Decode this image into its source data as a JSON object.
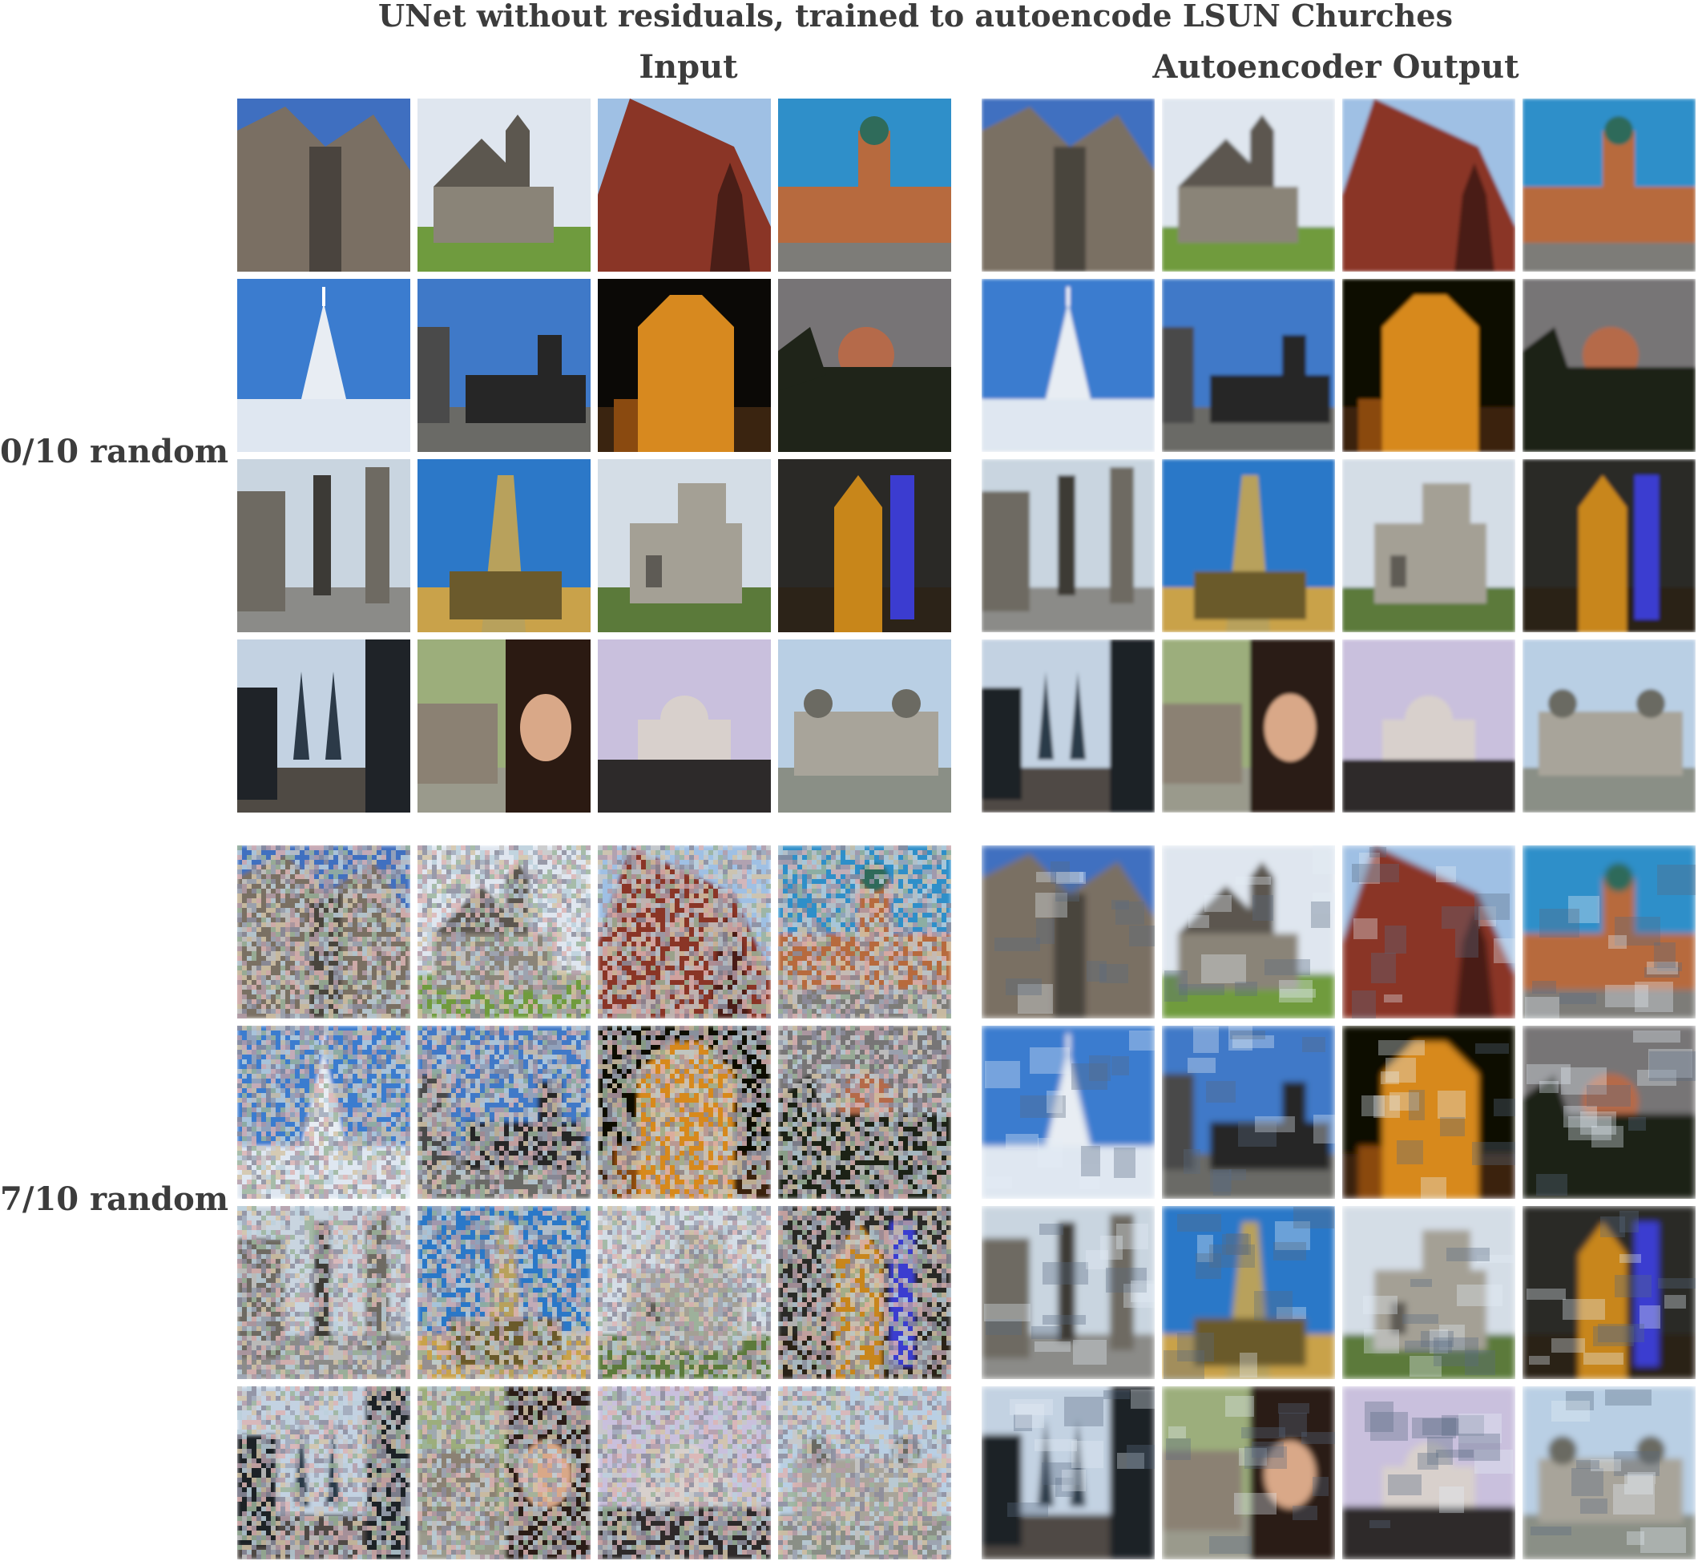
{
  "title": "UNet without residuals, trained to autoencode LSUN Churches",
  "columns": {
    "input": "Input",
    "output": "Autoencoder Output"
  },
  "rows": [
    {
      "label": "0/10 random"
    },
    {
      "label": "7/10 random"
    }
  ],
  "tiles": [
    {
      "sky": "#3f6fc0",
      "a": "#7a6f63",
      "b": "#4a443e",
      "g": "#5c5650",
      "kind": "tower"
    },
    {
      "sky": "#dfe6ef",
      "a": "#8a8478",
      "b": "#5c574f",
      "g": "#6f9b3e",
      "kind": "house"
    },
    {
      "sky": "#9fc0e4",
      "a": "#8a3526",
      "b": "#4a1e17",
      "g": "#3b2a28",
      "kind": "gable"
    },
    {
      "sky": "#2f8fc9",
      "a": "#b76a3e",
      "b": "#2f6b5a",
      "g": "#7d7c78",
      "kind": "square"
    },
    {
      "sky": "#3b7ccf",
      "a": "#e8edf3",
      "b": "#b9c2cb",
      "g": "#dfe7f1",
      "kind": "spire"
    },
    {
      "sky": "#3f79c8",
      "a": "#4a4a4a",
      "b": "#262626",
      "g": "#6a6a66",
      "kind": "city"
    },
    {
      "sky": "#0b0906",
      "a": "#d7891f",
      "b": "#8a4a10",
      "g": "#3a2410",
      "kind": "facade"
    },
    {
      "sky": "#777476",
      "a": "#b56a4a",
      "b": "#1f2419",
      "g": "#1a1a18",
      "kind": "dome"
    },
    {
      "sky": "#c9d5e0",
      "a": "#6e6a62",
      "b": "#3c3a36",
      "g": "#8b8b88",
      "kind": "street"
    },
    {
      "sky": "#2c78c8",
      "a": "#b8a15c",
      "b": "#6b5a2c",
      "g": "#c9a24a",
      "kind": "steeple"
    },
    {
      "sky": "#d4dde6",
      "a": "#a4a095",
      "b": "#5e5b55",
      "g": "#5b7a3a",
      "kind": "block"
    },
    {
      "sky": "#2a2926",
      "a": "#c8861a",
      "b": "#3b3cd0",
      "g": "#2c2318",
      "kind": "night"
    },
    {
      "sky": "#c3d2e2",
      "a": "#2c3a48",
      "b": "#1f2328",
      "g": "#4f4a44",
      "kind": "twin"
    },
    {
      "sky": "#9cae7b",
      "a": "#8b8173",
      "b": "#2b1a12",
      "g": "#9a9a8c",
      "kind": "portrait"
    },
    {
      "sky": "#c9c0dd",
      "a": "#d8d0cc",
      "b": "#2d2a2a",
      "g": "#5a5048",
      "kind": "basilica"
    },
    {
      "sky": "#b9cfe4",
      "a": "#a8a49a",
      "b": "#6b6a62",
      "g": "#8a8f86",
      "kind": "palace"
    }
  ]
}
